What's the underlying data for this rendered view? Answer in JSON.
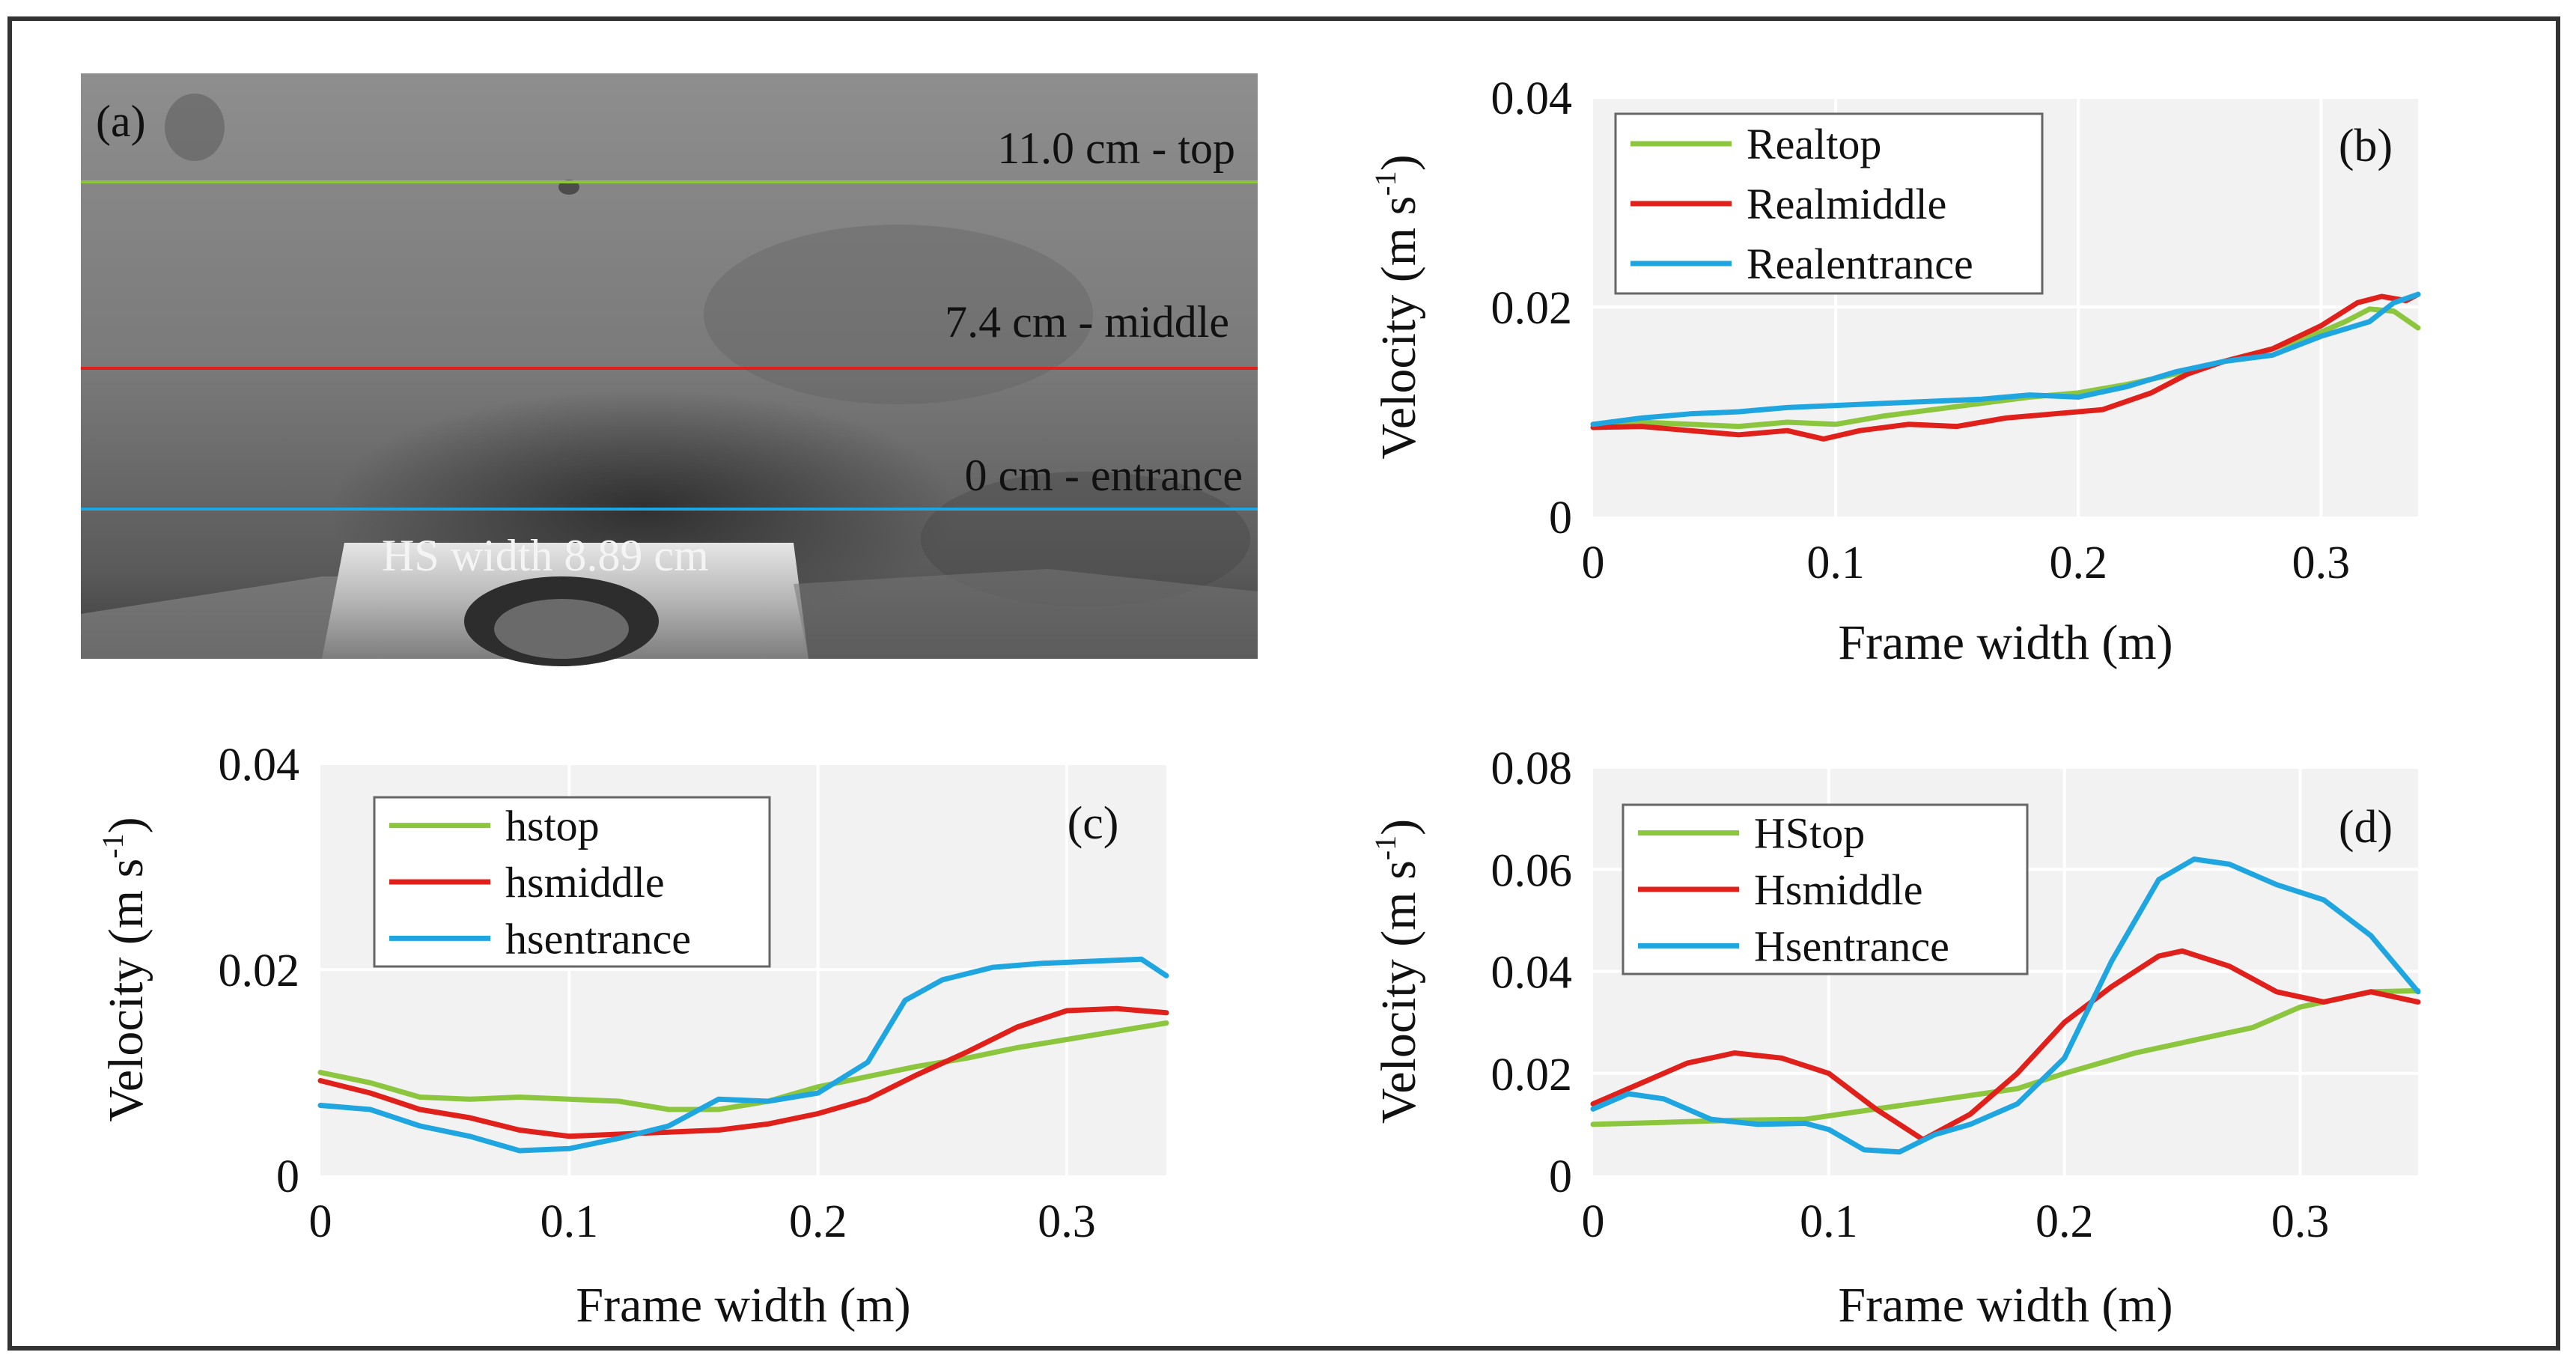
{
  "colors": {
    "green": "#8cc63f",
    "red": "#e0201b",
    "blue": "#1fa6e0",
    "plot_bg": "#f2f2f2",
    "grid": "#ffffff"
  },
  "photo": {
    "panel_label": "(a)",
    "lines": [
      {
        "label": "11.0 cm - top",
        "color": "#8cc63f"
      },
      {
        "label": "7.4 cm - middle",
        "color": "#e0201b"
      },
      {
        "label": "0 cm - entrance",
        "color": "#1fa6e0"
      }
    ],
    "hs_label": "HS width 8.89 cm"
  },
  "chart_data": [
    {
      "type": "line",
      "panel": "(b)",
      "xlabel": "Frame width (m)",
      "ylabel": "Velocity (m s-1)",
      "ylabel_main": "Velocity (m s",
      "ylabel_sup": "-1",
      "ylabel_close": ")",
      "xlim": [
        0,
        0.34
      ],
      "ylim": [
        0,
        0.04
      ],
      "xticks": [
        "0",
        "0.1",
        "0.2",
        "0.3"
      ],
      "xtick_values": [
        0,
        0.1,
        0.2,
        0.3
      ],
      "yticks": [
        "0",
        "0.02",
        "0.04"
      ],
      "ytick_values": [
        0,
        0.02,
        0.04
      ],
      "series": [
        {
          "name": "Realtop",
          "color": "#8cc63f",
          "points": [
            [
              0,
              0.0088
            ],
            [
              0.02,
              0.009
            ],
            [
              0.04,
              0.0088
            ],
            [
              0.06,
              0.0086
            ],
            [
              0.08,
              0.009
            ],
            [
              0.1,
              0.0088
            ],
            [
              0.12,
              0.0096
            ],
            [
              0.14,
              0.0102
            ],
            [
              0.16,
              0.0108
            ],
            [
              0.18,
              0.0114
            ],
            [
              0.2,
              0.0118
            ],
            [
              0.22,
              0.0126
            ],
            [
              0.24,
              0.0136
            ],
            [
              0.26,
              0.0148
            ],
            [
              0.28,
              0.016
            ],
            [
              0.3,
              0.0176
            ],
            [
              0.31,
              0.0186
            ],
            [
              0.32,
              0.0198
            ],
            [
              0.33,
              0.0196
            ],
            [
              0.34,
              0.018
            ]
          ]
        },
        {
          "name": "Realmiddle",
          "color": "#e0201b",
          "points": [
            [
              0,
              0.0085
            ],
            [
              0.02,
              0.0086
            ],
            [
              0.04,
              0.0082
            ],
            [
              0.06,
              0.0078
            ],
            [
              0.08,
              0.0082
            ],
            [
              0.095,
              0.0074
            ],
            [
              0.11,
              0.0082
            ],
            [
              0.13,
              0.0088
            ],
            [
              0.15,
              0.0086
            ],
            [
              0.17,
              0.0094
            ],
            [
              0.19,
              0.0098
            ],
            [
              0.21,
              0.0102
            ],
            [
              0.23,
              0.0118
            ],
            [
              0.245,
              0.0136
            ],
            [
              0.26,
              0.0148
            ],
            [
              0.28,
              0.016
            ],
            [
              0.3,
              0.0182
            ],
            [
              0.315,
              0.0204
            ],
            [
              0.325,
              0.021
            ],
            [
              0.335,
              0.0206
            ],
            [
              0.34,
              0.0212
            ]
          ]
        },
        {
          "name": "Realentrance",
          "color": "#1fa6e0",
          "points": [
            [
              0,
              0.0088
            ],
            [
              0.02,
              0.0094
            ],
            [
              0.04,
              0.0098
            ],
            [
              0.06,
              0.01
            ],
            [
              0.08,
              0.0104
            ],
            [
              0.1,
              0.0106
            ],
            [
              0.12,
              0.0108
            ],
            [
              0.14,
              0.011
            ],
            [
              0.16,
              0.0112
            ],
            [
              0.18,
              0.0116
            ],
            [
              0.2,
              0.0114
            ],
            [
              0.22,
              0.0124
            ],
            [
              0.24,
              0.0138
            ],
            [
              0.26,
              0.0148
            ],
            [
              0.28,
              0.0154
            ],
            [
              0.3,
              0.0172
            ],
            [
              0.32,
              0.0186
            ],
            [
              0.33,
              0.0204
            ],
            [
              0.34,
              0.0212
            ]
          ]
        }
      ]
    },
    {
      "type": "line",
      "panel": "(c)",
      "xlabel": "Frame width (m)",
      "ylabel": "Velocity (m s-1)",
      "ylabel_main": "Velocity (m s",
      "ylabel_sup": "-1",
      "ylabel_close": ")",
      "xlim": [
        0,
        0.34
      ],
      "ylim": [
        0,
        0.04
      ],
      "xticks": [
        "0",
        "0.1",
        "0.2",
        "0.3"
      ],
      "xtick_values": [
        0,
        0.1,
        0.2,
        0.3
      ],
      "yticks": [
        "0",
        "0.02",
        "0.04"
      ],
      "ytick_values": [
        0,
        0.02,
        0.04
      ],
      "series": [
        {
          "name": "hstop",
          "color": "#8cc63f",
          "points": [
            [
              0,
              0.01
            ],
            [
              0.02,
              0.009
            ],
            [
              0.04,
              0.0076
            ],
            [
              0.06,
              0.0074
            ],
            [
              0.08,
              0.0076
            ],
            [
              0.1,
              0.0074
            ],
            [
              0.12,
              0.0072
            ],
            [
              0.14,
              0.0064
            ],
            [
              0.16,
              0.0064
            ],
            [
              0.18,
              0.0072
            ],
            [
              0.2,
              0.0086
            ],
            [
              0.22,
              0.0096
            ],
            [
              0.24,
              0.0106
            ],
            [
              0.26,
              0.0114
            ],
            [
              0.28,
              0.0124
            ],
            [
              0.3,
              0.0132
            ],
            [
              0.32,
              0.014
            ],
            [
              0.34,
              0.0148
            ]
          ]
        },
        {
          "name": "hsmiddle",
          "color": "#e0201b",
          "points": [
            [
              0,
              0.0092
            ],
            [
              0.02,
              0.008
            ],
            [
              0.04,
              0.0064
            ],
            [
              0.06,
              0.0056
            ],
            [
              0.08,
              0.0044
            ],
            [
              0.1,
              0.0038
            ],
            [
              0.12,
              0.004
            ],
            [
              0.14,
              0.0042
            ],
            [
              0.16,
              0.0044
            ],
            [
              0.18,
              0.005
            ],
            [
              0.2,
              0.006
            ],
            [
              0.22,
              0.0074
            ],
            [
              0.24,
              0.0098
            ],
            [
              0.26,
              0.012
            ],
            [
              0.28,
              0.0144
            ],
            [
              0.3,
              0.016
            ],
            [
              0.32,
              0.0162
            ],
            [
              0.34,
              0.0158
            ]
          ]
        },
        {
          "name": "hsentrance",
          "color": "#1fa6e0",
          "points": [
            [
              0,
              0.0068
            ],
            [
              0.02,
              0.0064
            ],
            [
              0.04,
              0.0048
            ],
            [
              0.06,
              0.0038
            ],
            [
              0.08,
              0.0024
            ],
            [
              0.1,
              0.0026
            ],
            [
              0.12,
              0.0036
            ],
            [
              0.14,
              0.0048
            ],
            [
              0.16,
              0.0074
            ],
            [
              0.18,
              0.0072
            ],
            [
              0.2,
              0.008
            ],
            [
              0.22,
              0.011
            ],
            [
              0.235,
              0.017
            ],
            [
              0.25,
              0.019
            ],
            [
              0.27,
              0.0202
            ],
            [
              0.29,
              0.0206
            ],
            [
              0.31,
              0.0208
            ],
            [
              0.33,
              0.021
            ],
            [
              0.34,
              0.0194
            ]
          ]
        }
      ]
    },
    {
      "type": "line",
      "panel": "(d)",
      "xlabel": "Frame width (m)",
      "ylabel": "Velocity (m s-1)",
      "ylabel_main": "Velocity (m s",
      "ylabel_sup": "-1",
      "ylabel_close": ")",
      "xlim": [
        0,
        0.35
      ],
      "ylim": [
        0,
        0.08
      ],
      "xticks": [
        "0",
        "0.1",
        "0.2",
        "0.3"
      ],
      "xtick_values": [
        0,
        0.1,
        0.2,
        0.3
      ],
      "yticks": [
        "0",
        "0.02",
        "0.04",
        "0.06",
        "0.08"
      ],
      "ytick_values": [
        0,
        0.02,
        0.04,
        0.06,
        0.08
      ],
      "series": [
        {
          "name": "HStop",
          "color": "#8cc63f",
          "points": [
            [
              0,
              0.01
            ],
            [
              0.03,
              0.0104
            ],
            [
              0.06,
              0.0108
            ],
            [
              0.09,
              0.011
            ],
            [
              0.12,
              0.013
            ],
            [
              0.15,
              0.015
            ],
            [
              0.18,
              0.017
            ],
            [
              0.2,
              0.02
            ],
            [
              0.23,
              0.024
            ],
            [
              0.26,
              0.027
            ],
            [
              0.28,
              0.029
            ],
            [
              0.3,
              0.033
            ],
            [
              0.33,
              0.036
            ],
            [
              0.35,
              0.0362
            ]
          ]
        },
        {
          "name": "Hsmiddle",
          "color": "#e0201b",
          "points": [
            [
              0,
              0.014
            ],
            [
              0.02,
              0.018
            ],
            [
              0.04,
              0.022
            ],
            [
              0.06,
              0.024
            ],
            [
              0.08,
              0.023
            ],
            [
              0.1,
              0.02
            ],
            [
              0.12,
              0.013
            ],
            [
              0.14,
              0.007
            ],
            [
              0.16,
              0.012
            ],
            [
              0.18,
              0.02
            ],
            [
              0.2,
              0.03
            ],
            [
              0.22,
              0.037
            ],
            [
              0.24,
              0.043
            ],
            [
              0.25,
              0.044
            ],
            [
              0.27,
              0.041
            ],
            [
              0.29,
              0.036
            ],
            [
              0.31,
              0.034
            ],
            [
              0.33,
              0.036
            ],
            [
              0.35,
              0.034
            ]
          ]
        },
        {
          "name": "Hsentrance",
          "color": "#1fa6e0",
          "points": [
            [
              0,
              0.013
            ],
            [
              0.015,
              0.016
            ],
            [
              0.03,
              0.015
            ],
            [
              0.05,
              0.011
            ],
            [
              0.07,
              0.01
            ],
            [
              0.09,
              0.0102
            ],
            [
              0.1,
              0.009
            ],
            [
              0.115,
              0.005
            ],
            [
              0.13,
              0.0046
            ],
            [
              0.145,
              0.008
            ],
            [
              0.16,
              0.01
            ],
            [
              0.18,
              0.014
            ],
            [
              0.2,
              0.023
            ],
            [
              0.22,
              0.042
            ],
            [
              0.24,
              0.058
            ],
            [
              0.255,
              0.062
            ],
            [
              0.27,
              0.061
            ],
            [
              0.29,
              0.057
            ],
            [
              0.31,
              0.054
            ],
            [
              0.33,
              0.047
            ],
            [
              0.35,
              0.036
            ]
          ]
        }
      ]
    }
  ]
}
